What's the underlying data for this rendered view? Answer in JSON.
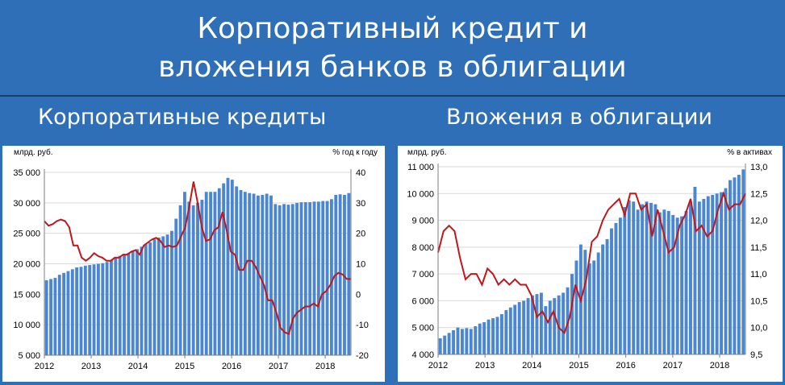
{
  "slide": {
    "title_line1": "Корпоративный кредит и",
    "title_line2": "вложения банков в облигации",
    "heading_left": "Корпоративные кредиты",
    "heading_right": "Вложения в облигации",
    "colors": {
      "background": "#2e6fb7",
      "bar": "#4a86d1",
      "line": "#c0161c"
    }
  },
  "chart_data": [
    {
      "type": "bar",
      "title": "Корпоративные кредиты",
      "left_unit": "млрд. руб.",
      "right_unit": "% год к году",
      "x_tick_labels": [
        "2012",
        "2013",
        "2014",
        "2015",
        "2016",
        "2017",
        "2018"
      ],
      "left_ticks": [
        "35 000",
        "30 000",
        "25 000",
        "20 000",
        "15 000",
        "10 000",
        "5 000"
      ],
      "right_ticks": [
        "40",
        "30",
        "20",
        "10",
        "0",
        "-10",
        "-20"
      ],
      "ylim_left": [
        5000,
        35000
      ],
      "ylim_right": [
        -20,
        40
      ],
      "grid": true,
      "series": [
        {
          "name": "",
          "axis": "left",
          "kind": "bar",
          "values": [
            17300,
            17500,
            17700,
            18200,
            18500,
            18800,
            19100,
            19400,
            19500,
            19700,
            19800,
            19900,
            20000,
            20100,
            20300,
            20600,
            21000,
            21300,
            21600,
            21800,
            22100,
            22400,
            22800,
            23200,
            23500,
            24000,
            24300,
            24500,
            24800,
            25400,
            27400,
            29600,
            31800,
            30200,
            29600,
            30000,
            30500,
            31800,
            31800,
            31800,
            32400,
            33200,
            34100,
            33800,
            32700,
            32100,
            31800,
            31600,
            31500,
            31200,
            31300,
            31500,
            31200,
            29800,
            29600,
            29800,
            29700,
            29800,
            30000,
            30100,
            30100,
            30100,
            30200,
            30200,
            30300,
            30300,
            30600,
            31300,
            31400,
            31300,
            31600
          ]
        },
        {
          "name": "",
          "axis": "right",
          "kind": "line",
          "values": [
            24,
            22.5,
            23,
            24,
            24.5,
            24,
            22,
            16,
            16,
            12,
            11,
            12,
            13.5,
            12.5,
            12,
            11,
            11,
            12,
            12,
            13,
            13,
            14,
            14.5,
            13,
            16,
            17,
            18,
            18.5,
            17.5,
            15.5,
            16,
            15.5,
            16,
            19,
            22,
            29,
            37,
            30,
            22,
            17.5,
            18,
            21,
            22,
            27,
            21,
            14,
            13,
            8,
            8,
            11,
            11,
            9,
            6,
            3,
            -2,
            -2,
            -6,
            -11,
            -12.5,
            -13,
            -8,
            -6,
            -5,
            -4,
            -4,
            -3,
            -4,
            0,
            1,
            3,
            6,
            7,
            6.5,
            5,
            5
          ]
        }
      ]
    },
    {
      "type": "bar",
      "title": "Вложения в облигации",
      "left_unit": "млрд. руб.",
      "right_unit": "% в активах",
      "x_tick_labels": [
        "2012",
        "2013",
        "2014",
        "2015",
        "2016",
        "2017",
        "2018"
      ],
      "left_ticks": [
        "11 000",
        "10 000",
        "9 000",
        "8 000",
        "7 000",
        "6 000",
        "5 000",
        "4 000"
      ],
      "right_ticks": [
        "13,0",
        "12,5",
        "12,0",
        "11,5",
        "11,0",
        "10,5",
        "10,0",
        "9,5"
      ],
      "ylim_left": [
        4000,
        11000
      ],
      "ylim_right": [
        9.5,
        13.0
      ],
      "grid": true,
      "series": [
        {
          "name": "",
          "axis": "left",
          "kind": "bar",
          "values": [
            4600,
            4700,
            4800,
            4900,
            5000,
            4950,
            4980,
            4950,
            5050,
            5150,
            5200,
            5300,
            5350,
            5400,
            5500,
            5650,
            5750,
            5850,
            5950,
            6000,
            6100,
            6200,
            6250,
            6300,
            5800,
            6000,
            6100,
            6200,
            6300,
            6500,
            7000,
            7500,
            8100,
            7900,
            7400,
            7500,
            7800,
            8100,
            8300,
            8700,
            8900,
            9100,
            9500,
            9750,
            9700,
            9400,
            9600,
            9700,
            9650,
            9600,
            9300,
            9400,
            9350,
            9200,
            9100,
            9150,
            9350,
            9700,
            10250,
            9700,
            9800,
            9900,
            9950,
            10000,
            10050,
            10200,
            10500,
            10600,
            10700,
            10900
          ]
        },
        {
          "name": "",
          "axis": "right",
          "kind": "line",
          "values": [
            11.4,
            11.8,
            11.9,
            11.8,
            11.3,
            10.9,
            11.0,
            11.0,
            10.8,
            11.1,
            11.0,
            10.8,
            10.9,
            10.8,
            10.9,
            10.8,
            10.8,
            10.6,
            10.2,
            10.3,
            10.1,
            10.3,
            10.0,
            9.9,
            10.2,
            10.8,
            10.5,
            10.9,
            11.6,
            11.7,
            12.0,
            12.2,
            12.3,
            12.4,
            12.1,
            12.5,
            12.5,
            12.2,
            12.3,
            11.7,
            12.2,
            11.8,
            11.4,
            11.5,
            11.9,
            12.1,
            12.4,
            11.8,
            11.9,
            11.7,
            11.8,
            12.2,
            12.5,
            12.2,
            12.3,
            12.3,
            12.5
          ]
        }
      ]
    }
  ]
}
